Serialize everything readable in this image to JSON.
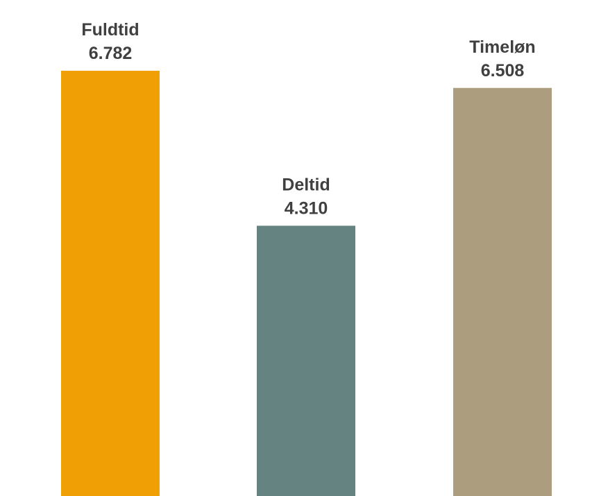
{
  "chart_data": {
    "type": "bar",
    "categories": [
      "Fuldtid",
      "Deltid",
      "Timeløn"
    ],
    "values": [
      6782,
      4310,
      6508
    ],
    "value_labels": [
      "6.782",
      "4.310",
      "6.508"
    ],
    "colors": [
      "#F0A004",
      "#658381",
      "#AC9D7E"
    ],
    "title": "",
    "xlabel": "",
    "ylabel": "",
    "ylim": [
      0,
      6970
    ],
    "grid": false,
    "legend": "none"
  }
}
